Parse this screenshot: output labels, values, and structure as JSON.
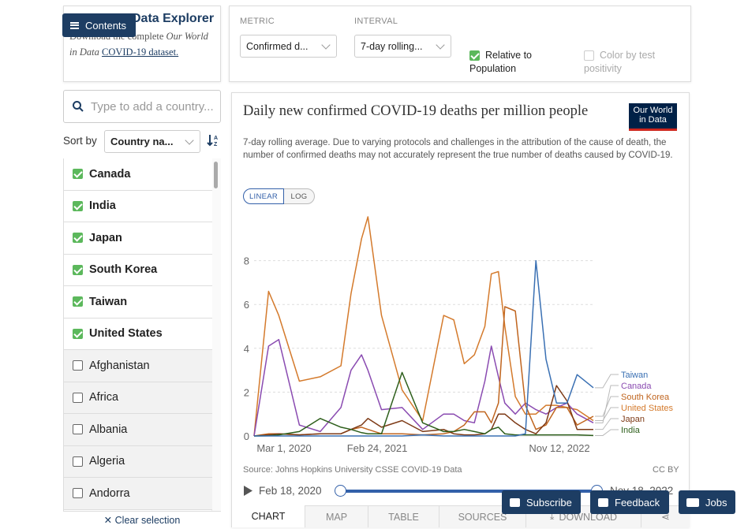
{
  "explorer": {
    "title": "Data Explorer",
    "contents_label": "Contents",
    "intro_pre": "Download the complete",
    "intro_italic": "Our World in Data",
    "intro_link": "COVID-19 dataset.",
    "metric_label": "METRIC",
    "metric_value": "Confirmed d...",
    "interval_label": "INTERVAL",
    "interval_value": "7-day rolling...",
    "relative_label": "Relative to Population",
    "color_label": "Color by test positivity",
    "search_placeholder": "Type to add a country...",
    "sort_label": "Sort by",
    "sort_value": "Country na...",
    "clear_label": "Clear selection"
  },
  "countries": [
    {
      "name": "Canada",
      "selected": true
    },
    {
      "name": "India",
      "selected": true
    },
    {
      "name": "Japan",
      "selected": true
    },
    {
      "name": "South Korea",
      "selected": true
    },
    {
      "name": "Taiwan",
      "selected": true
    },
    {
      "name": "United States",
      "selected": true
    },
    {
      "name": "Afghanistan",
      "selected": false
    },
    {
      "name": "Africa",
      "selected": false
    },
    {
      "name": "Albania",
      "selected": false
    },
    {
      "name": "Algeria",
      "selected": false
    },
    {
      "name": "Andorra",
      "selected": false
    }
  ],
  "chart_header": {
    "title": "Daily new confirmed COVID-19 deaths per million people",
    "subtitle": "7-day rolling average. Due to varying protocols and challenges in the attribution of the cause of death, the number of confirmed deaths may not accurately represent the true number of deaths caused by COVID-19.",
    "logo_line1": "Our World",
    "logo_line2": "in Data",
    "linear": "LINEAR",
    "log": "LOG",
    "source": "Source: Johns Hopkins University CSSE COVID-19 Data",
    "license": "CC BY",
    "start_date": "Feb 18, 2020",
    "end_date": "Nov 18, 2022"
  },
  "tabs": [
    "CHART",
    "MAP",
    "TABLE",
    "SOURCES",
    "DOWNLOAD"
  ],
  "buttons": {
    "subscribe": "Subscribe",
    "feedback": "Feedback",
    "jobs": "Jobs"
  },
  "colors": {
    "Taiwan": "#3a70b3",
    "Canada": "#8a4bb1",
    "South Korea": "#c0651f",
    "United States": "#d47a2c",
    "Japan": "#7d3a16",
    "India": "#2e5f1c",
    "accent": "#1d3d63"
  },
  "chart_data": {
    "type": "line",
    "yticks": [
      0,
      2,
      4,
      6,
      8
    ],
    "xticks": [
      "Mar 1, 2020",
      "Feb 24, 2021",
      "Nov 12, 2022"
    ],
    "ylim": [
      0,
      10
    ],
    "x": [
      "2020-02-18",
      "2020-04-01",
      "2020-05-01",
      "2020-07-01",
      "2020-09-01",
      "2020-11-01",
      "2020-12-01",
      "2021-01-01",
      "2021-01-20",
      "2021-03-01",
      "2021-05-01",
      "2021-07-01",
      "2021-09-01",
      "2021-10-01",
      "2021-11-01",
      "2021-12-01",
      "2022-01-01",
      "2022-01-20",
      "2022-02-10",
      "2022-03-01",
      "2022-04-01",
      "2022-05-01",
      "2022-06-01",
      "2022-07-01",
      "2022-08-01",
      "2022-09-01",
      "2022-10-01",
      "2022-11-18"
    ],
    "series": [
      {
        "name": "United States",
        "values": [
          0,
          6.6,
          5.5,
          2.5,
          2.7,
          3.2,
          6.5,
          9.0,
          10.0,
          5.5,
          2.1,
          0.7,
          5.5,
          5.3,
          3.3,
          3.7,
          5.0,
          7.4,
          7.5,
          5.0,
          1.8,
          1.0,
          1.0,
          1.4,
          1.4,
          1.3,
          1.2,
          0.7
        ]
      },
      {
        "name": "Canada",
        "values": [
          0,
          4.1,
          4.4,
          0.5,
          0.2,
          1.3,
          3.0,
          3.7,
          3.0,
          1.2,
          1.3,
          0.3,
          1.0,
          1.0,
          0.7,
          0.6,
          2.5,
          4.1,
          2.7,
          1.5,
          1.0,
          1.5,
          1.2,
          1.0,
          1.3,
          1.5,
          1.0,
          0.6
        ]
      },
      {
        "name": "South Korea",
        "values": [
          0,
          0.1,
          0.1,
          0.05,
          0.1,
          0.1,
          0.3,
          0.4,
          0.3,
          0.1,
          0.1,
          0.05,
          0.1,
          0.2,
          0.5,
          1.1,
          1.1,
          0.6,
          1.5,
          5.9,
          5.7,
          1.4,
          0.3,
          0.5,
          1.3,
          1.3,
          0.5,
          0.9
        ]
      },
      {
        "name": "Japan",
        "values": [
          0,
          0.05,
          0.1,
          0.05,
          0.1,
          0.1,
          0.3,
          0.5,
          0.8,
          0.4,
          0.7,
          0.2,
          0.3,
          0.1,
          0.05,
          0.05,
          0.1,
          0.3,
          1.0,
          1.0,
          0.6,
          0.3,
          0.1,
          0.6,
          2.3,
          1.6,
          0.3,
          0.3
        ]
      },
      {
        "name": "India",
        "values": [
          0,
          0.01,
          0.05,
          0.2,
          0.8,
          0.4,
          0.3,
          0.15,
          0.1,
          0.1,
          2.9,
          0.6,
          0.2,
          0.2,
          0.3,
          0.2,
          0.1,
          0.3,
          0.4,
          0.1,
          0.05,
          0.05,
          0.05,
          0.05,
          0.05,
          0.05,
          0.05,
          0.02
        ]
      },
      {
        "name": "Taiwan",
        "values": [
          0,
          0,
          0,
          0,
          0,
          0,
          0,
          0,
          0,
          0,
          0,
          0.05,
          0,
          0,
          0,
          0,
          0,
          0,
          0,
          0,
          0,
          0.1,
          8.0,
          3.5,
          1.5,
          1.5,
          2.8,
          2.2
        ]
      }
    ]
  }
}
